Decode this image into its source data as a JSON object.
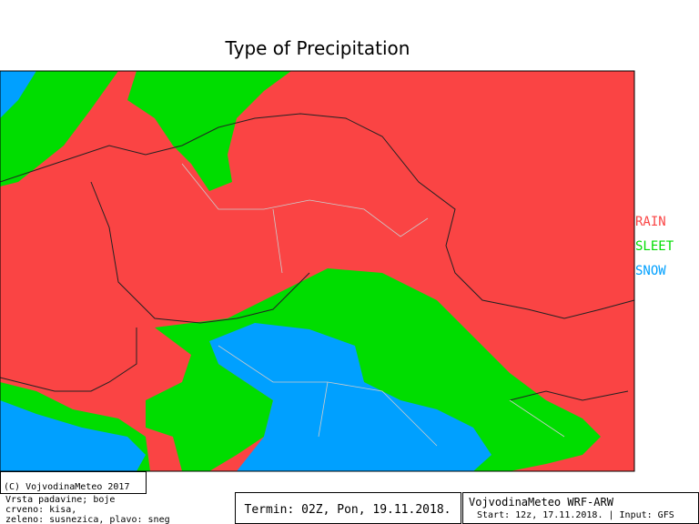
{
  "title": "Type of Precipitation",
  "legend": [
    {
      "label": "RAIN",
      "color": "#fa4444"
    },
    {
      "label": "SLEET",
      "color": "#00dd00"
    },
    {
      "label": "SNOW",
      "color": "#00a0ff"
    }
  ],
  "footer": {
    "copyright": "(C) VojvodinaMeteo 2017",
    "description": [
      "Vrsta padavine; boje",
      "crveno: kisa,",
      "zeleno: susnezica, plavo: sneg"
    ],
    "termin": "Termin: 02Z, Pon, 19.11.2018.",
    "model": "VojvodinaMeteo WRF-ARW",
    "start": "Start: 12z, 17.11.2018. | Input: GFS"
  }
}
